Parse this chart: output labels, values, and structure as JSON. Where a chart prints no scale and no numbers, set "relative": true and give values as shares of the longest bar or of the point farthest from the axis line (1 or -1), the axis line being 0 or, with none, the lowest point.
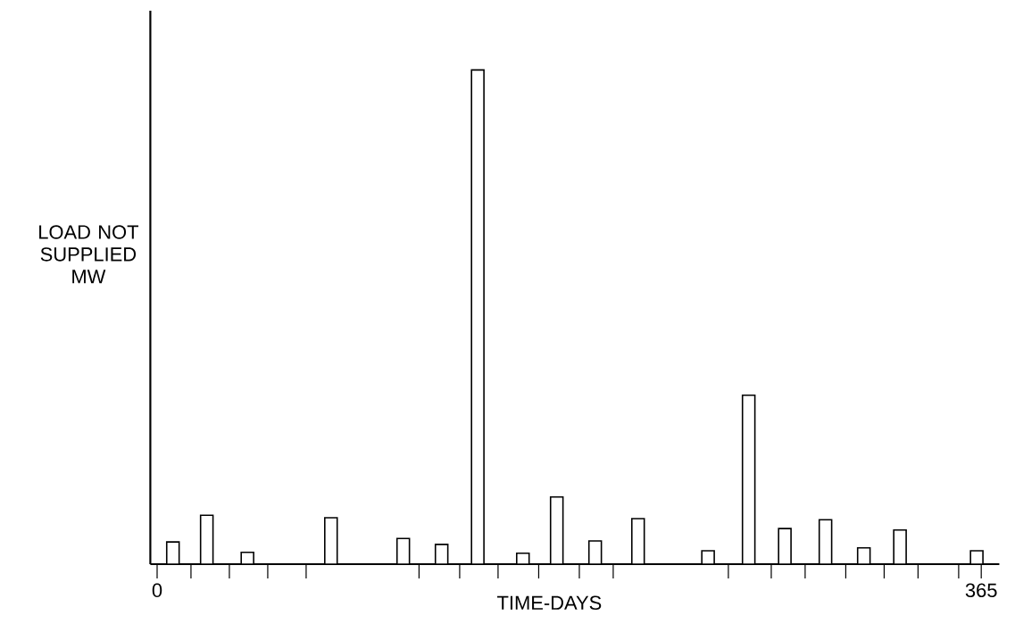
{
  "chart_data": {
    "type": "bar",
    "relative": true,
    "ylabel": "LOAD NOT SUPPLIED MW",
    "xlabel": "TIME-DAYS",
    "color": "#ffffff",
    "x": [
      7,
      22,
      40,
      77,
      109,
      126,
      142,
      162,
      177,
      194,
      213,
      244,
      262,
      278,
      296,
      313,
      329,
      363
    ],
    "values": [
      0.045,
      0.099,
      0.024,
      0.094,
      0.052,
      0.04,
      1,
      0.022,
      0.136,
      0.047,
      0.092,
      0.027,
      0.342,
      0.072,
      0.09,
      0.033,
      0.069,
      0.027
    ],
    "xlim": [
      -3,
      373
    ],
    "xticks": [
      0,
      {
        "value": 15,
        "label": null
      },
      {
        "value": 32,
        "label": null
      },
      {
        "value": 49,
        "label": null
      },
      {
        "value": 66,
        "label": null
      },
      {
        "value": 116,
        "label": null
      },
      {
        "value": 134,
        "label": null
      },
      {
        "value": 151,
        "label": null
      },
      {
        "value": 169,
        "label": null
      },
      {
        "value": 187,
        "label": null
      },
      {
        "value": 202,
        "label": null
      },
      {
        "value": 253,
        "label": null
      },
      {
        "value": 272,
        "label": null
      },
      {
        "value": 287,
        "label": null
      },
      {
        "value": 305,
        "label": null
      },
      {
        "value": 322,
        "label": null
      },
      {
        "value": 337,
        "label": null
      },
      {
        "value": 355,
        "label": null
      },
      365
    ],
    "tick_labels": "x",
    "grid": false,
    "legend": false
  }
}
